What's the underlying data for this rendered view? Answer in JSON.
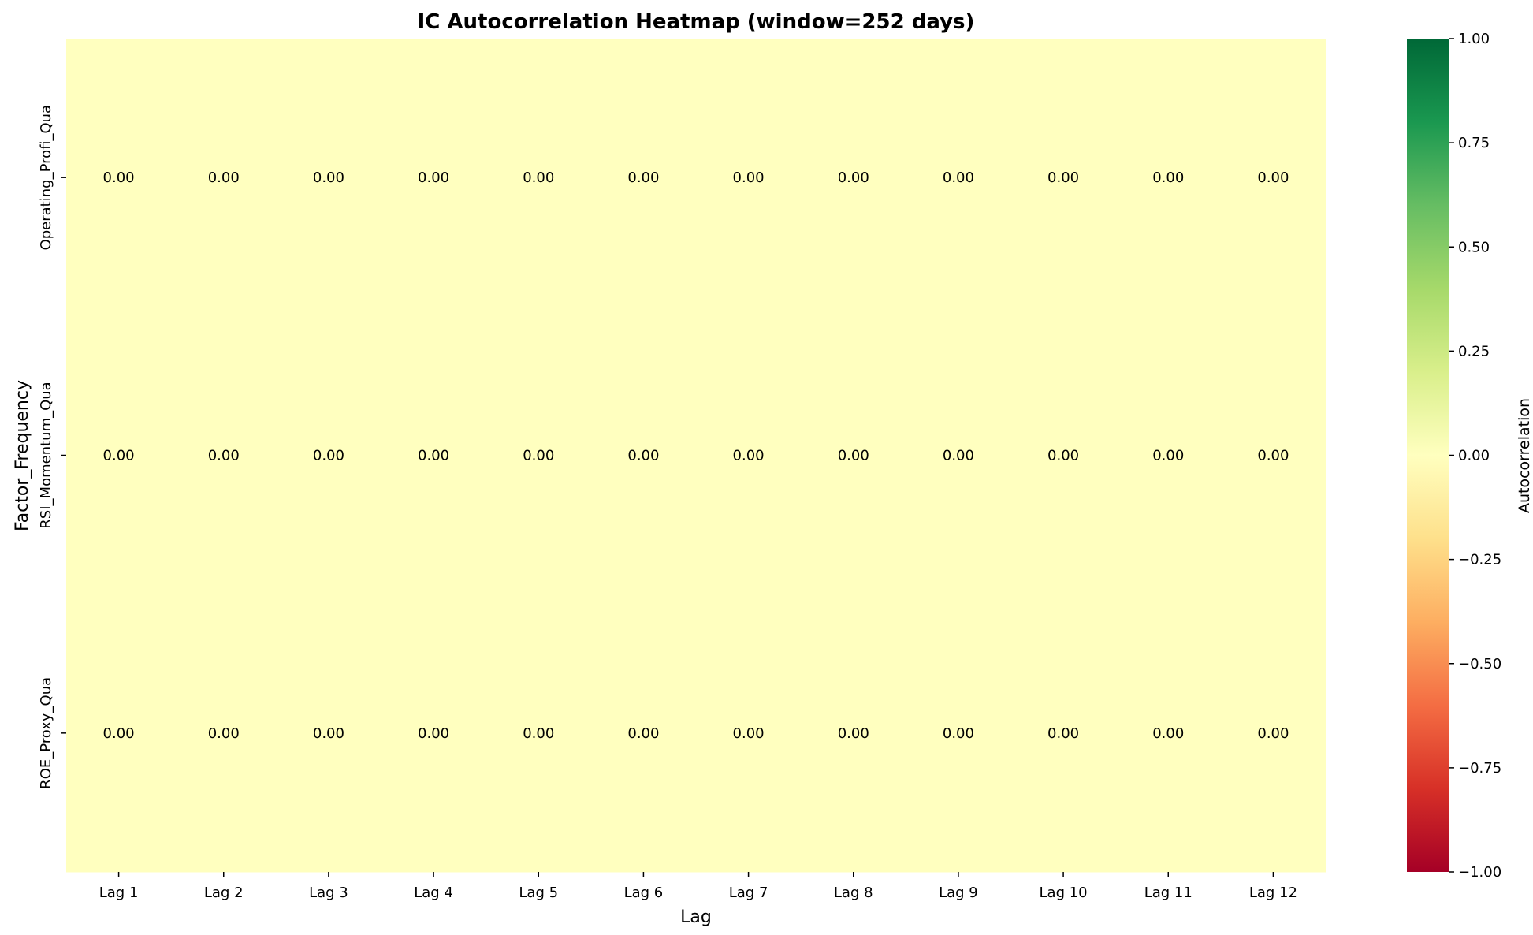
{
  "chart_data": {
    "type": "heatmap",
    "title": "IC Autocorrelation Heatmap (window=252 days)",
    "xlabel": "Lag",
    "ylabel": "Factor_Frequency",
    "x_categories": [
      "Lag 1",
      "Lag 2",
      "Lag 3",
      "Lag 4",
      "Lag 5",
      "Lag 6",
      "Lag 7",
      "Lag 8",
      "Lag 9",
      "Lag 10",
      "Lag 11",
      "Lag 12"
    ],
    "y_categories": [
      "Operating_Profi_Qua",
      "RSI_Momentum_Qua",
      "ROE_Proxy_Qua"
    ],
    "values": [
      [
        0,
        0,
        0,
        0,
        0,
        0,
        0,
        0,
        0,
        0,
        0,
        0
      ],
      [
        0,
        0,
        0,
        0,
        0,
        0,
        0,
        0,
        0,
        0,
        0,
        0
      ],
      [
        0,
        0,
        0,
        0,
        0,
        0,
        0,
        0,
        0,
        0,
        0,
        0
      ]
    ],
    "value_format": "0.00",
    "colorbar": {
      "label": "Autocorrelation",
      "range": [
        -1,
        1
      ],
      "ticks": [
        {
          "value": 1.0,
          "label": "1.00"
        },
        {
          "value": 0.75,
          "label": "0.75"
        },
        {
          "value": 0.5,
          "label": "0.50"
        },
        {
          "value": 0.25,
          "label": "0.25"
        },
        {
          "value": 0.0,
          "label": "0.00"
        },
        {
          "value": -0.25,
          "label": "−0.25"
        },
        {
          "value": -0.5,
          "label": "−0.50"
        },
        {
          "value": -0.75,
          "label": "−0.75"
        },
        {
          "value": -1.0,
          "label": "−1.00"
        }
      ],
      "colormap": "RdYlGn",
      "colors": [
        "#a50026",
        "#d73027",
        "#f46d43",
        "#fdae61",
        "#fee08b",
        "#ffffbf",
        "#d9ef8b",
        "#a6d96a",
        "#66bd63",
        "#1a9850",
        "#006837"
      ]
    },
    "grid": false,
    "legend": "none"
  }
}
